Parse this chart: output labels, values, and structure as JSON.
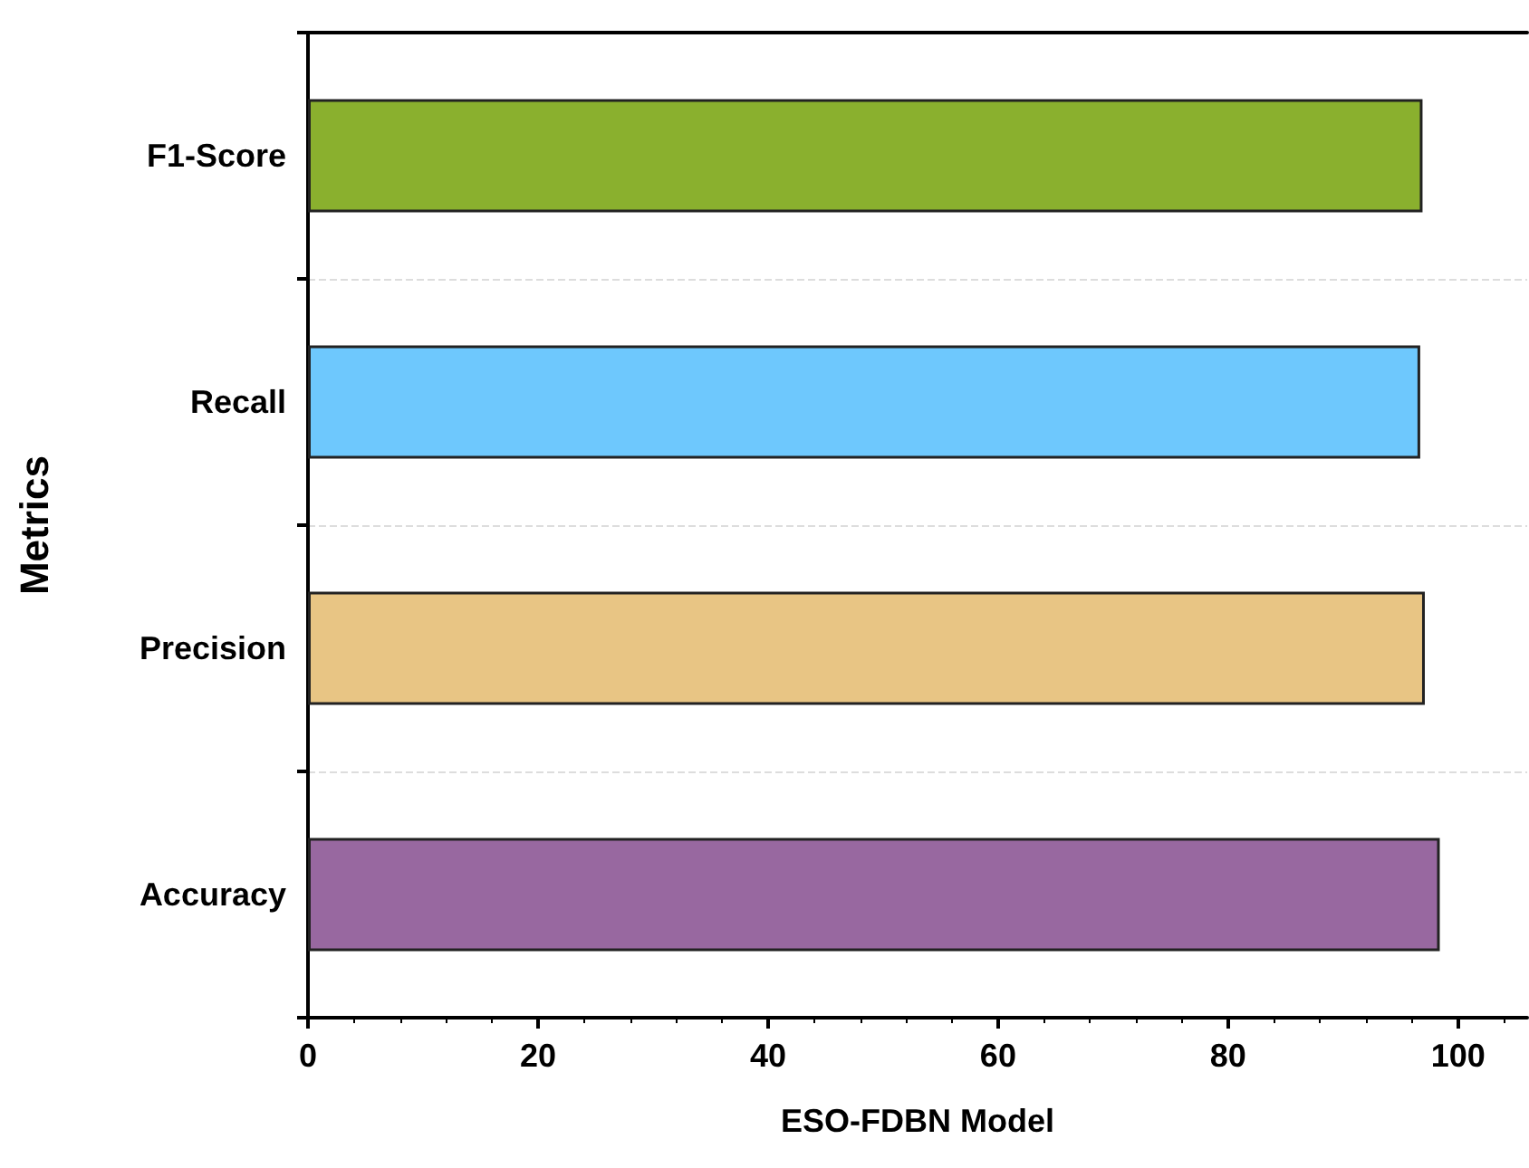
{
  "chart_data": {
    "type": "bar",
    "orientation": "horizontal",
    "xlabel": "ESO-FDBN Model",
    "ylabel": "Metrics",
    "categories": [
      "F1-Score",
      "Recall",
      "Precision",
      "Accuracy"
    ],
    "values": [
      96.9,
      96.7,
      97.1,
      98.4
    ],
    "colors": [
      "#8ab02e",
      "#6ec8fd",
      "#e8c584",
      "#9868a0"
    ],
    "xlim": [
      0,
      106
    ],
    "xticks": [
      0,
      20,
      40,
      60,
      80,
      100
    ],
    "grid": "y"
  }
}
